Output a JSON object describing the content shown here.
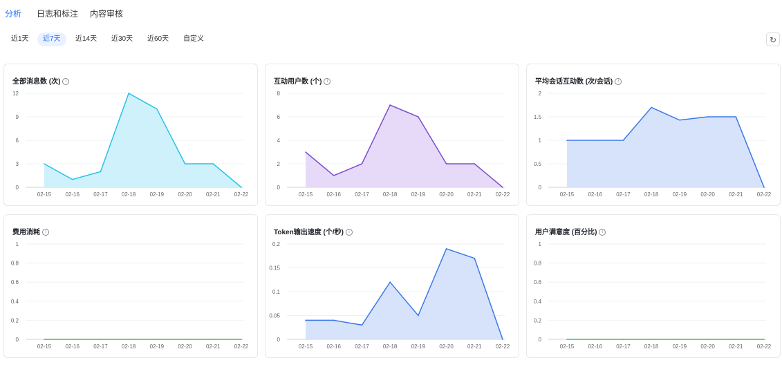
{
  "tabs": [
    {
      "label": "分析",
      "active": true
    },
    {
      "label": "日志和标注",
      "active": false
    },
    {
      "label": "内容审核",
      "active": false
    }
  ],
  "ranges": [
    {
      "label": "近1天",
      "active": false
    },
    {
      "label": "近7天",
      "active": true
    },
    {
      "label": "近14天",
      "active": false
    },
    {
      "label": "近30天",
      "active": false
    },
    {
      "label": "近60天",
      "active": false
    },
    {
      "label": "自定义",
      "active": false
    }
  ],
  "refresh_icon": "refresh-icon",
  "chart_data": [
    {
      "type": "area",
      "title": "全部消息数 (次)",
      "categories": [
        "02-15",
        "02-16",
        "02-17",
        "02-18",
        "02-19",
        "02-20",
        "02-21",
        "02-22"
      ],
      "values": [
        3,
        1,
        2,
        12,
        10,
        3,
        3,
        0
      ],
      "yticks": [
        "0",
        "3",
        "6",
        "9",
        "12"
      ],
      "ylim": [
        0,
        12
      ],
      "color": "#29c2e6",
      "fill": "#c9f0fb"
    },
    {
      "type": "area",
      "title": "互动用户数 (个)",
      "categories": [
        "02-15",
        "02-16",
        "02-17",
        "02-18",
        "02-19",
        "02-20",
        "02-21",
        "02-22"
      ],
      "values": [
        3,
        1,
        2,
        7,
        6,
        2,
        2,
        0
      ],
      "yticks": [
        "0",
        "2",
        "4",
        "6",
        "8"
      ],
      "ylim": [
        0,
        8
      ],
      "color": "#7b4fd0",
      "fill": "#e4d6f7"
    },
    {
      "type": "area",
      "title": "平均会话互动数 (次/会话)",
      "categories": [
        "02-15",
        "02-16",
        "02-17",
        "02-18",
        "02-19",
        "02-20",
        "02-21",
        "02-22"
      ],
      "values": [
        1,
        1,
        1,
        1.7,
        1.43,
        1.5,
        1.5,
        0
      ],
      "yticks": [
        "0",
        "0.5",
        "1",
        "1.5",
        "2"
      ],
      "ylim": [
        0,
        2
      ],
      "color": "#3b78e7",
      "fill": "#d3e0fa"
    },
    {
      "type": "line",
      "title": "费用消耗",
      "categories": [
        "02-15",
        "02-16",
        "02-17",
        "02-18",
        "02-19",
        "02-20",
        "02-21",
        "02-22"
      ],
      "values": [
        0,
        0,
        0,
        0,
        0,
        0,
        0,
        0
      ],
      "yticks": [
        "0",
        "0.2",
        "0.4",
        "0.6",
        "0.8",
        "1"
      ],
      "ylim": [
        0,
        1
      ],
      "color": "#3cc24a",
      "fill": "none"
    },
    {
      "type": "area",
      "title": "Token输出速度 (个/秒)",
      "categories": [
        "02-15",
        "02-16",
        "02-17",
        "02-18",
        "02-19",
        "02-20",
        "02-21",
        "02-22"
      ],
      "values": [
        0.04,
        0.04,
        0.03,
        0.12,
        0.05,
        0.19,
        0.17,
        0
      ],
      "yticks": [
        "0",
        "0.05",
        "0.1",
        "0.15",
        "0.2"
      ],
      "ylim": [
        0,
        0.2
      ],
      "color": "#3b78e7",
      "fill": "#d3e0fa"
    },
    {
      "type": "line",
      "title": "用户满意度 (百分比)",
      "categories": [
        "02-15",
        "02-16",
        "02-17",
        "02-18",
        "02-19",
        "02-20",
        "02-21",
        "02-22"
      ],
      "values": [
        0,
        0,
        0,
        0,
        0,
        0,
        0,
        0
      ],
      "yticks": [
        "0",
        "0.2",
        "0.4",
        "0.6",
        "0.8",
        "1"
      ],
      "ylim": [
        0,
        1
      ],
      "color": "#3cc24a",
      "fill": "none"
    }
  ]
}
